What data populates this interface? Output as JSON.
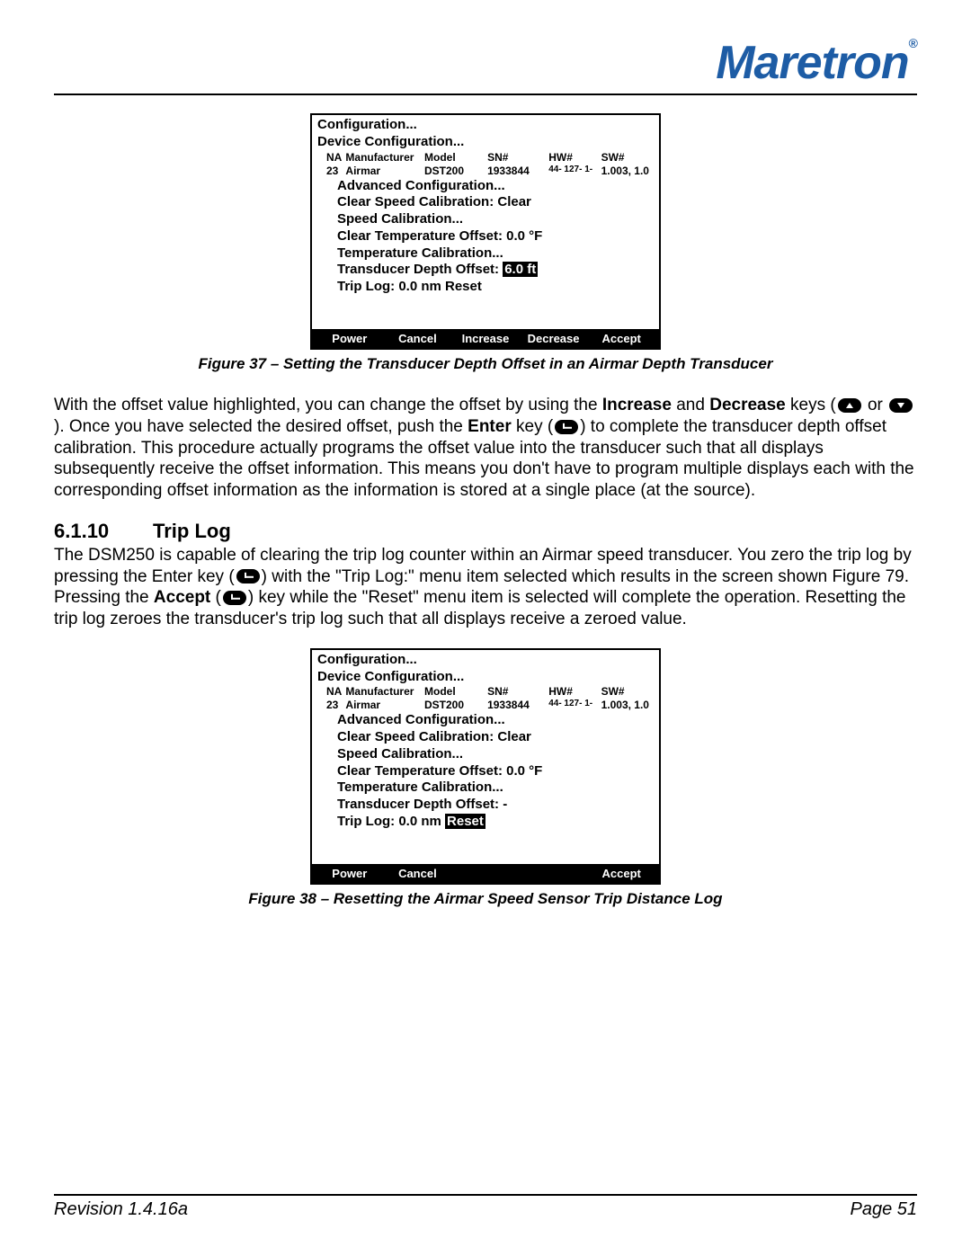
{
  "brand": "Maretron",
  "brand_color": "#1d5ca5",
  "figure37": {
    "caption": "Figure 37 – Setting the Transducer Depth Offset in an Airmar Depth Transducer",
    "screen": {
      "line1": "Configuration...",
      "line2": "Device Configuration...",
      "header": {
        "na": "NA",
        "mfr": "Manufacturer",
        "model": "Model",
        "sn": "SN#",
        "hw": "HW#",
        "sw": "SW#"
      },
      "row": {
        "na": "23",
        "mfr": "Airmar",
        "model": "DST200",
        "sn": "1933844",
        "hw": "44- 127- 1-",
        "sw": "1.003, 1.0"
      },
      "l_adv": "Advanced Configuration...",
      "l_csc": "Clear Speed Calibration: Clear",
      "l_sc": "Speed Calibration...",
      "l_cto": "Clear Temperature Offset:   0.0  °F",
      "l_tc": "Temperature Calibration...",
      "l_tdo_label": "Transducer Depth Offset:",
      "l_tdo_hl": " 6.0  ft ",
      "l_trip": "Trip Log:     0.0  nm Reset",
      "buttons": [
        "Power",
        "Cancel",
        "Increase",
        "Decrease",
        "Accept"
      ]
    }
  },
  "para1_a": "With the offset value highlighted, you can change the offset by using the ",
  "para1_b": "Increase",
  "para1_c": " and ",
  "para1_d": "Decrease",
  "para1_e": " keys (",
  "para1_f": " or ",
  "para1_g": "). Once you have selected the desired offset, push the ",
  "para1_h": "Enter",
  "para1_i": " key (",
  "para1_j": ") to complete the transducer depth offset calibration. This procedure actually programs the offset value into the transducer such that all displays subsequently receive the offset information. This means you don't have to program multiple displays each with the corresponding offset information as the information is stored at a single place (at the source).",
  "section": {
    "num": "6.1.10",
    "title": "Trip Log"
  },
  "para2_a": "The DSM250 is capable of clearing the trip log counter within an Airmar speed transducer. You zero the trip log by pressing the Enter key (",
  "para2_b": ") with the \"Trip Log:\" menu item selected which results in the screen shown Figure 79. Pressing the ",
  "para2_c": "Accept",
  "para2_d": " (",
  "para2_e": ") key while the \"Reset\" menu item is selected will complete the operation. Resetting the trip log zeroes the transducer's trip log such that all displays receive a zeroed value.",
  "figure38": {
    "caption": "Figure 38 – Resetting the Airmar Speed Sensor Trip Distance Log",
    "screen": {
      "line1": "Configuration...",
      "line2": "Device Configuration...",
      "header": {
        "na": "NA",
        "mfr": "Manufacturer",
        "model": "Model",
        "sn": "SN#",
        "hw": "HW#",
        "sw": "SW#"
      },
      "row": {
        "na": "23",
        "mfr": "Airmar",
        "model": "DST200",
        "sn": "1933844",
        "hw": "44- 127- 1-",
        "sw": "1.003, 1.0"
      },
      "l_adv": "Advanced Configuration...",
      "l_csc": "Clear Speed Calibration: Clear",
      "l_sc": "Speed Calibration...",
      "l_cto": "Clear Temperature Offset:   0.0  °F",
      "l_tc": "Temperature Calibration...",
      "l_tdo": "Transducer Depth Offset:  -",
      "l_trip_label": "Trip Log:     0.0  nm ",
      "l_trip_hl": "Reset",
      "buttons": [
        "Power",
        "Cancel",
        "",
        "",
        "Accept"
      ]
    }
  },
  "footer": {
    "left": "Revision 1.4.16a",
    "right": "Page 51"
  }
}
